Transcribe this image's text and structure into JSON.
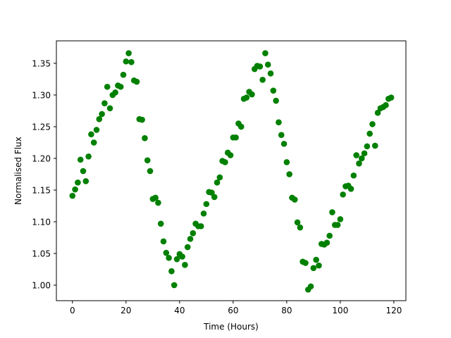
{
  "chart_data": {
    "type": "scatter",
    "title": "",
    "xlabel": "Time (Hours)",
    "ylabel": "Normalised Flux",
    "xlim": [
      -6,
      124.5
    ],
    "ylim": [
      0.9755,
      1.3855
    ],
    "xticks": [
      0,
      20,
      40,
      60,
      80,
      100,
      120
    ],
    "yticks": [
      1.0,
      1.05,
      1.1,
      1.15,
      1.2,
      1.25,
      1.3,
      1.35
    ],
    "ytick_labels": [
      "1.00",
      "1.05",
      "1.10",
      "1.15",
      "1.20",
      "1.25",
      "1.30",
      "1.35"
    ],
    "grid": false,
    "legend": "none",
    "series": [
      {
        "color": "#008000",
        "marker": "circle",
        "x": [
          0,
          1,
          2,
          3,
          4,
          5,
          6,
          7,
          8,
          9,
          10,
          11,
          12,
          13,
          14,
          15,
          16,
          17,
          18,
          19,
          20,
          21,
          22,
          23,
          24,
          25,
          26,
          27,
          28,
          29,
          30,
          31,
          32,
          33,
          34,
          35,
          36,
          37,
          38,
          39,
          40,
          41,
          42,
          43,
          44,
          45,
          46,
          47,
          48,
          49,
          50,
          51,
          52,
          53,
          54,
          55,
          56,
          57,
          58,
          59,
          60,
          61,
          62,
          63,
          64,
          65,
          66,
          67,
          68,
          69,
          70,
          71,
          72,
          73,
          74,
          75,
          76,
          77,
          78,
          79,
          80,
          81,
          82,
          83,
          84,
          85,
          86,
          87,
          88,
          89,
          90,
          91,
          92,
          93,
          94,
          95,
          96,
          97,
          98,
          99,
          100,
          101,
          102,
          103,
          104,
          105,
          106,
          107,
          108,
          109,
          110,
          111,
          112,
          113,
          114,
          115,
          116,
          117,
          118,
          119
        ],
        "y": [
          1.141,
          1.151,
          1.162,
          1.198,
          1.18,
          1.164,
          1.203,
          1.238,
          1.225,
          1.245,
          1.262,
          1.27,
          1.287,
          1.313,
          1.279,
          1.3,
          1.304,
          1.315,
          1.313,
          1.332,
          1.353,
          1.366,
          1.352,
          1.323,
          1.321,
          1.262,
          1.261,
          1.232,
          1.197,
          1.18,
          1.136,
          1.138,
          1.13,
          1.097,
          1.069,
          1.051,
          1.043,
          1.022,
          1.0,
          1.041,
          1.049,
          1.045,
          1.032,
          1.06,
          1.073,
          1.082,
          1.097,
          1.093,
          1.093,
          1.113,
          1.128,
          1.147,
          1.146,
          1.139,
          1.162,
          1.17,
          1.196,
          1.194,
          1.209,
          1.205,
          1.233,
          1.233,
          1.255,
          1.25,
          1.294,
          1.296,
          1.305,
          1.301,
          1.341,
          1.346,
          1.345,
          1.324,
          1.366,
          1.348,
          1.334,
          1.307,
          1.291,
          1.257,
          1.237,
          1.223,
          1.194,
          1.175,
          1.138,
          1.135,
          1.099,
          1.091,
          1.037,
          1.035,
          0.993,
          0.998,
          1.027,
          1.04,
          1.031,
          1.065,
          1.064,
          1.067,
          1.078,
          1.115,
          1.095,
          1.095,
          1.104,
          1.143,
          1.156,
          1.157,
          1.152,
          1.173,
          1.205,
          1.192,
          1.2,
          1.208,
          1.219,
          1.239,
          1.254,
          1.22,
          1.272,
          1.279,
          1.281,
          1.284,
          1.294,
          1.296
        ]
      }
    ]
  }
}
